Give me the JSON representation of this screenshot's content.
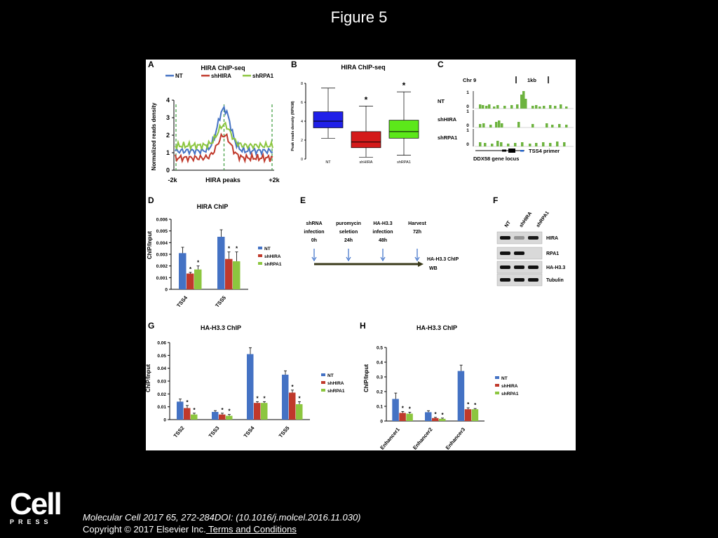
{
  "slide": {
    "title": "Figure 5",
    "citation": "Molecular Cell 2017 65, 272-284DOI: (10.1016/j.molcel.2016.11.030)",
    "copyright": "Copyright © 2017 Elsevier Inc.",
    "terms_link": " Terms and Conditions",
    "logo_main": "Cell",
    "logo_sub": "PRESS"
  },
  "colors": {
    "nt": "#4472C4",
    "shhira": "#C0392B",
    "shrpa1": "#8CC63F"
  },
  "panels": {
    "A": {
      "letter": "A",
      "title": "HIRA ChIP-seq",
      "ylabel": "Normalized reads density",
      "xlabel": "HIRA peaks",
      "xleft": "-2k",
      "xright": "+2k",
      "yticks": [
        "0",
        "1",
        "2",
        "3",
        "4"
      ],
      "legend": [
        "NT",
        "shHIRA",
        "shRPA1"
      ]
    },
    "B": {
      "letter": "B",
      "title": "HIRA ChIP-seq",
      "ylabel": "Peak reads density (RPKM)",
      "yticks": [
        "0",
        "2",
        "4",
        "6",
        "8"
      ],
      "categories": [
        "NT",
        "shHIRA",
        "shRPA1"
      ],
      "star": "*"
    },
    "C": {
      "letter": "C",
      "chr": "Chr 9",
      "scale": "1kb",
      "tracks": [
        "NT",
        "shHIRA",
        "shRPA1"
      ],
      "axis_hi": "1",
      "axis_lo": "0",
      "gene": "DDX58 gene locus",
      "primer": "TSS4 primer"
    },
    "D": {
      "letter": "D",
      "title": "HIRA ChIP",
      "ylabel": "ChIP/Input",
      "yticks": [
        "0",
        "0.001",
        "0.002",
        "0.003",
        "0.004",
        "0.005",
        "0.006"
      ],
      "categories": [
        "TSS4",
        "TSS5"
      ],
      "legend": [
        "NT",
        "shHIRA",
        "shRPA1"
      ],
      "star": "*"
    },
    "E": {
      "letter": "E",
      "steps": [
        {
          "l1": "shRNA",
          "l2": "infection",
          "l3": "0h"
        },
        {
          "l1": "puromycin",
          "l2": "seletion",
          "l3": "24h"
        },
        {
          "l1": "HA-H3.3",
          "l2": "infection",
          "l3": "48h"
        },
        {
          "l1": "Harvest",
          "l2": "72h",
          "l3": ""
        }
      ],
      "end1": "HA-H3.3 ChIP",
      "end2": "WB"
    },
    "F": {
      "letter": "F",
      "lanes": [
        "NT",
        "shHIRA",
        "shRPA1"
      ],
      "rows": [
        "HIRA",
        "RPA1",
        "HA-H3.3",
        "Tubulin"
      ]
    },
    "G": {
      "letter": "G",
      "title": "HA-H3.3 ChIP",
      "ylabel": "ChIP/Input",
      "yticks": [
        "0",
        "0.01",
        "0.02",
        "0.03",
        "0.04",
        "0.05",
        "0.06"
      ],
      "categories": [
        "TSS2",
        "TSS3",
        "TSS4",
        "TSS5"
      ],
      "legend": [
        "NT",
        "shHIRA",
        "shRPA1"
      ],
      "star": "*"
    },
    "H": {
      "letter": "H",
      "title": "HA-H3.3 ChIP",
      "ylabel": "ChIP/Input",
      "yticks": [
        "0",
        "0.1",
        "0.2",
        "0.3",
        "0.4",
        "0.5"
      ],
      "categories": [
        "Enhancer1",
        "Enhancer2",
        "Enhancer3"
      ],
      "legend": [
        "NT",
        "shHIRA",
        "shRPA1"
      ],
      "star": "*"
    }
  },
  "chart_data": [
    {
      "panel": "A",
      "type": "line",
      "title": "HIRA ChIP-seq",
      "xlabel": "HIRA peaks",
      "ylabel": "Normalized reads density",
      "ylim": [
        0,
        4
      ],
      "series": [
        {
          "name": "NT",
          "peak": 3.5,
          "baseline": 1.1
        },
        {
          "name": "shHIRA",
          "peak": 2.0,
          "baseline": 0.7
        },
        {
          "name": "shRPA1",
          "peak": 2.6,
          "baseline": 1.4
        }
      ]
    },
    {
      "panel": "B",
      "type": "box",
      "title": "HIRA ChIP-seq",
      "ylabel": "Peak reads density (RPKM)",
      "ylim": [
        0,
        8
      ],
      "categories": [
        "NT",
        "shHIRA",
        "shRPA1"
      ],
      "boxes": [
        {
          "min": 2.2,
          "q1": 3.3,
          "median": 4.0,
          "q3": 5.0,
          "max": 7.5
        },
        {
          "min": 0.2,
          "q1": 1.2,
          "median": 1.8,
          "q3": 2.9,
          "max": 5.6
        },
        {
          "min": 0.4,
          "q1": 2.2,
          "median": 2.9,
          "q3": 4.1,
          "max": 7.1
        }
      ]
    },
    {
      "panel": "D",
      "type": "bar",
      "title": "HIRA ChIP",
      "ylabel": "ChIP/Input",
      "ylim": [
        0,
        0.006
      ],
      "categories": [
        "TSS4",
        "TSS5"
      ],
      "series": [
        {
          "name": "NT",
          "values": [
            0.0031,
            0.0045
          ],
          "errors": [
            0.0005,
            0.0006
          ]
        },
        {
          "name": "shHIRA",
          "values": [
            0.00135,
            0.0026
          ],
          "errors": [
            0.0001,
            0.0006
          ]
        },
        {
          "name": "shRPA1",
          "values": [
            0.0017,
            0.0024
          ],
          "errors": [
            0.0003,
            0.0008
          ]
        }
      ]
    },
    {
      "panel": "G",
      "type": "bar",
      "title": "HA-H3.3 ChIP",
      "ylabel": "ChIP/Input",
      "ylim": [
        0,
        0.06
      ],
      "categories": [
        "TSS2",
        "TSS3",
        "TSS4",
        "TSS5"
      ],
      "series": [
        {
          "name": "NT",
          "values": [
            0.014,
            0.006,
            0.051,
            0.035
          ],
          "errors": [
            0.002,
            0.001,
            0.005,
            0.003
          ]
        },
        {
          "name": "shHIRA",
          "values": [
            0.009,
            0.004,
            0.013,
            0.021
          ],
          "errors": [
            0.002,
            0.001,
            0.001,
            0.002
          ]
        },
        {
          "name": "shRPA1",
          "values": [
            0.004,
            0.003,
            0.013,
            0.012
          ],
          "errors": [
            0.001,
            0.001,
            0.001,
            0.002
          ]
        }
      ]
    },
    {
      "panel": "H",
      "type": "bar",
      "title": "HA-H3.3 ChIP",
      "ylabel": "ChIP/Input",
      "ylim": [
        0,
        0.5
      ],
      "categories": [
        "Enhancer1",
        "Enhancer2",
        "Enhancer3"
      ],
      "series": [
        {
          "name": "NT",
          "values": [
            0.15,
            0.06,
            0.34
          ],
          "errors": [
            0.04,
            0.01,
            0.04
          ]
        },
        {
          "name": "shHIRA",
          "values": [
            0.055,
            0.02,
            0.08
          ],
          "errors": [
            0.01,
            0.005,
            0.01
          ]
        },
        {
          "name": "shRPA1",
          "values": [
            0.05,
            0.015,
            0.08
          ],
          "errors": [
            0.01,
            0.005,
            0.005
          ]
        }
      ]
    }
  ]
}
